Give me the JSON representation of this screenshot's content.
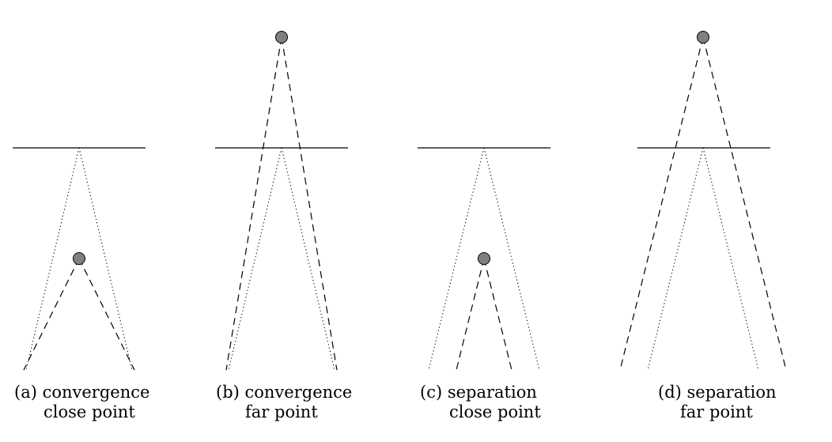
{
  "panels": [
    {
      "id": "a",
      "caption_line1": "(a) convergence",
      "caption_line2": "close point"
    },
    {
      "id": "b",
      "caption_line1": "(b) convergence",
      "caption_line2": "far point"
    },
    {
      "id": "c",
      "caption_line1": "(c) separation",
      "caption_line2": "close point"
    },
    {
      "id": "d",
      "caption_line1": "(d) separation",
      "caption_line2": "far point"
    }
  ],
  "colors": {
    "point_fill": "#808080",
    "stroke": "#000000"
  }
}
